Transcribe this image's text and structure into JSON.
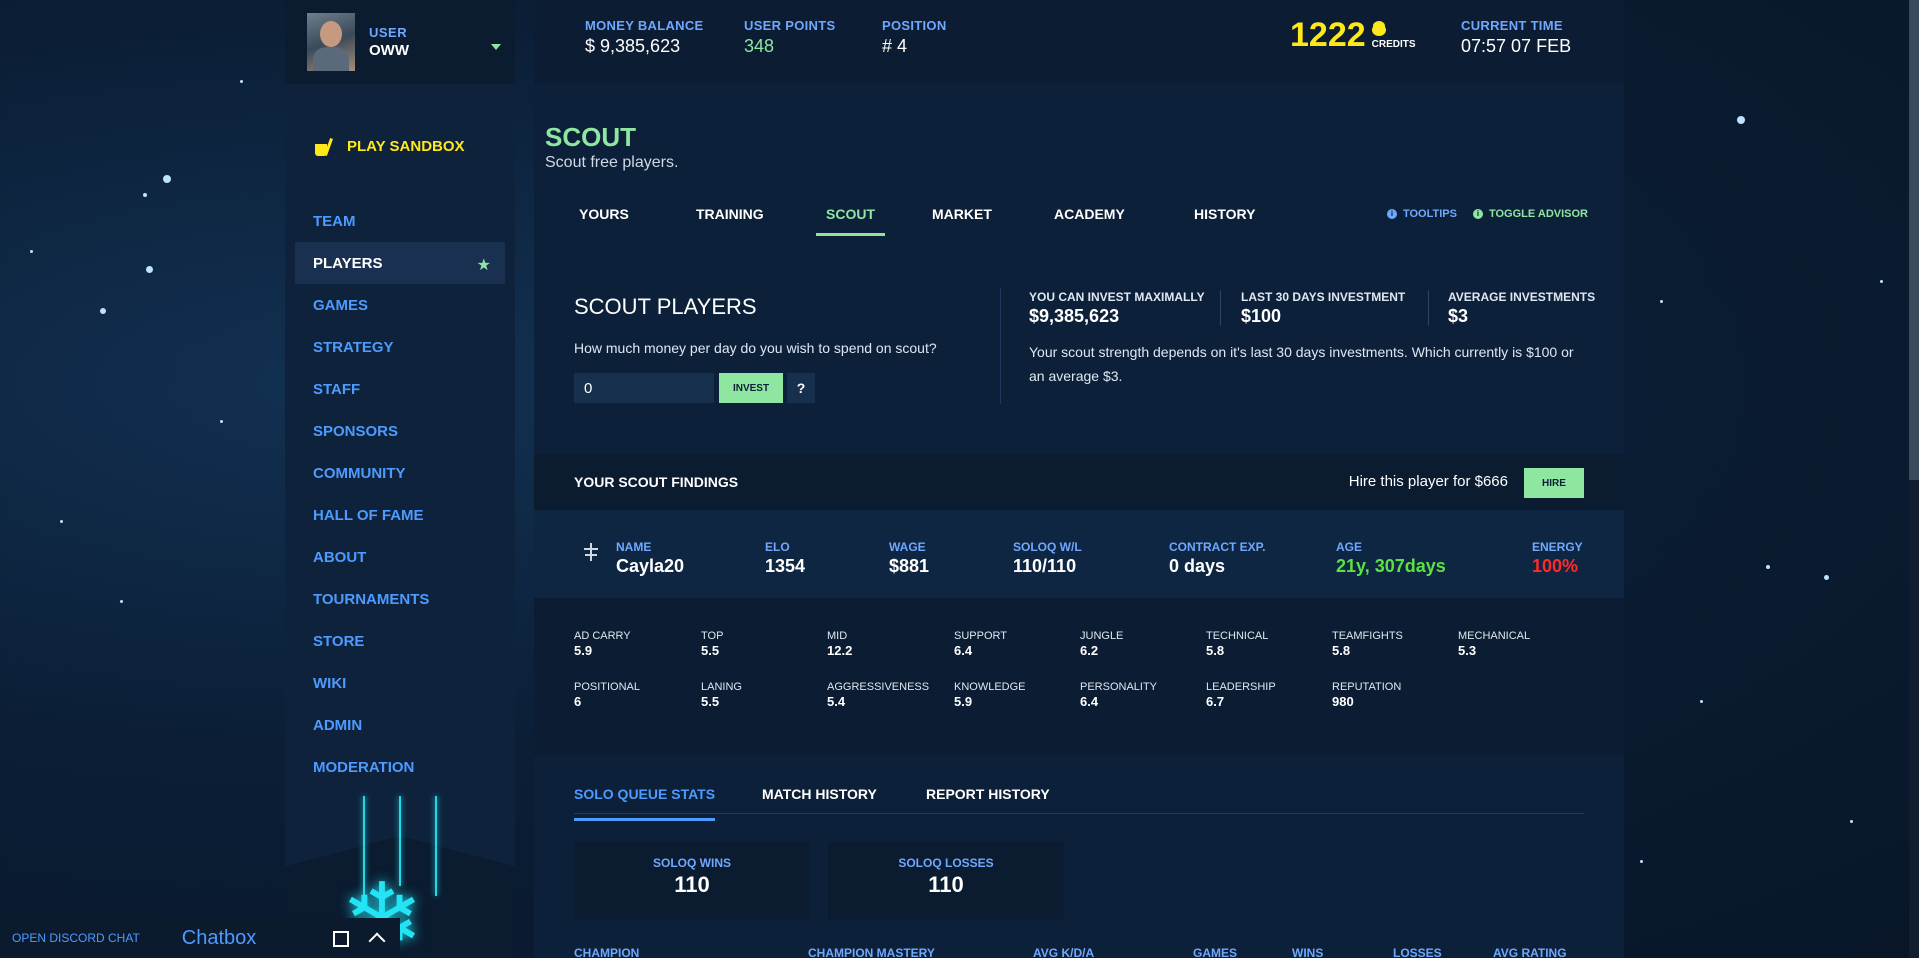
{
  "user": {
    "label": "USER",
    "name": "OWW"
  },
  "sidebar": {
    "play_sandbox": "PLAY SANDBOX",
    "items": [
      {
        "label": "TEAM"
      },
      {
        "label": "PLAYERS"
      },
      {
        "label": "GAMES"
      },
      {
        "label": "STRATEGY"
      },
      {
        "label": "STAFF"
      },
      {
        "label": "SPONSORS"
      },
      {
        "label": "COMMUNITY"
      },
      {
        "label": "HALL OF FAME"
      },
      {
        "label": "ABOUT"
      },
      {
        "label": "TOURNAMENTS"
      },
      {
        "label": "STORE"
      },
      {
        "label": "WIKI"
      },
      {
        "label": "ADMIN"
      },
      {
        "label": "MODERATION"
      }
    ],
    "active_item": "PLAYERS",
    "active_icon": "star-icon"
  },
  "chat": {
    "discord_link": "OPEN DISCORD CHAT",
    "title": "Chatbox"
  },
  "header": {
    "money_label": "MONEY BALANCE",
    "money_value": "$ 9,385,623",
    "points_label": "USER POINTS",
    "points_value": "348",
    "position_label": "POSITION",
    "position_value": "# 4",
    "credits_value": "1222",
    "credits_label": "CREDITS",
    "time_label": "CURRENT TIME",
    "time_value": "07:57 07 FEB"
  },
  "page": {
    "title": "SCOUT",
    "subtitle": "Scout free players.",
    "tabs": [
      {
        "label": "YOURS"
      },
      {
        "label": "TRAINING"
      },
      {
        "label": "SCOUT"
      },
      {
        "label": "MARKET"
      },
      {
        "label": "ACADEMY"
      },
      {
        "label": "HISTORY"
      }
    ],
    "active_tab": "SCOUT",
    "tooltips_label": "TOOLTIPS",
    "advisor_label": "TOGGLE ADVISOR"
  },
  "scout": {
    "title": "SCOUT PLAYERS",
    "question": "How much money per day do you wish to spend on scout?",
    "input_value": "0",
    "invest_label": "INVEST",
    "help_label": "?",
    "max_label": "YOU CAN INVEST MAXIMALLY",
    "max_value": "$9,385,623",
    "last30_label": "LAST 30 DAYS INVESTMENT",
    "last30_value": "$100",
    "avg_label": "AVERAGE INVESTMENTS",
    "avg_value": "$3",
    "description": "Your scout strength depends on it's last 30 days investments. Which currently is $100 or an average $3."
  },
  "findings": {
    "title": "YOUR SCOUT FINDINGS",
    "hire_text": "Hire this player for $666",
    "hire_label": "HIRE",
    "player": {
      "name_label": "NAME",
      "name": "Cayla20",
      "elo_label": "ELO",
      "elo": "1354",
      "wage_label": "WAGE",
      "wage": "$881",
      "wl_label": "SOLOQ W/L",
      "wl": "110/110",
      "contract_label": "CONTRACT EXP.",
      "contract": "0 days",
      "age_label": "AGE",
      "age": "21y, 307days",
      "energy_label": "ENERGY",
      "energy": "100%"
    },
    "attributes": [
      {
        "label": "AD CARRY",
        "value": "5.9"
      },
      {
        "label": "TOP",
        "value": "5.5"
      },
      {
        "label": "MID",
        "value": "12.2"
      },
      {
        "label": "SUPPORT",
        "value": "6.4"
      },
      {
        "label": "JUNGLE",
        "value": "6.2"
      },
      {
        "label": "TECHNICAL",
        "value": "5.8"
      },
      {
        "label": "TEAMFIGHTS",
        "value": "5.8"
      },
      {
        "label": "MECHANICAL",
        "value": "5.3"
      },
      {
        "label": "POSITIONAL",
        "value": "6"
      },
      {
        "label": "LANING",
        "value": "5.5"
      },
      {
        "label": "AGGRESSIVENESS",
        "value": "5.4"
      },
      {
        "label": "KNOWLEDGE",
        "value": "5.9"
      },
      {
        "label": "PERSONALITY",
        "value": "6.4"
      },
      {
        "label": "LEADERSHIP",
        "value": "6.7"
      },
      {
        "label": "REPUTATION",
        "value": "980"
      }
    ]
  },
  "stats": {
    "tabs": [
      {
        "label": "SOLO QUEUE STATS"
      },
      {
        "label": "MATCH HISTORY"
      },
      {
        "label": "REPORT HISTORY"
      }
    ],
    "active_tab": "SOLO QUEUE STATS",
    "wins_label": "SOLOQ WINS",
    "wins_value": "110",
    "losses_label": "SOLOQ LOSSES",
    "losses_value": "110",
    "columns": [
      "CHAMPION",
      "CHAMPION MASTERY",
      "AVG K/D/A",
      "GAMES",
      "WINS",
      "LOSSES",
      "AVG RATING"
    ]
  },
  "colors": {
    "accent_green": "#8fe6a0",
    "link_blue": "#4d9bff",
    "credits_yellow": "#ffe81a",
    "energy_red": "#ff2a2a",
    "age_green": "#5ce044"
  }
}
